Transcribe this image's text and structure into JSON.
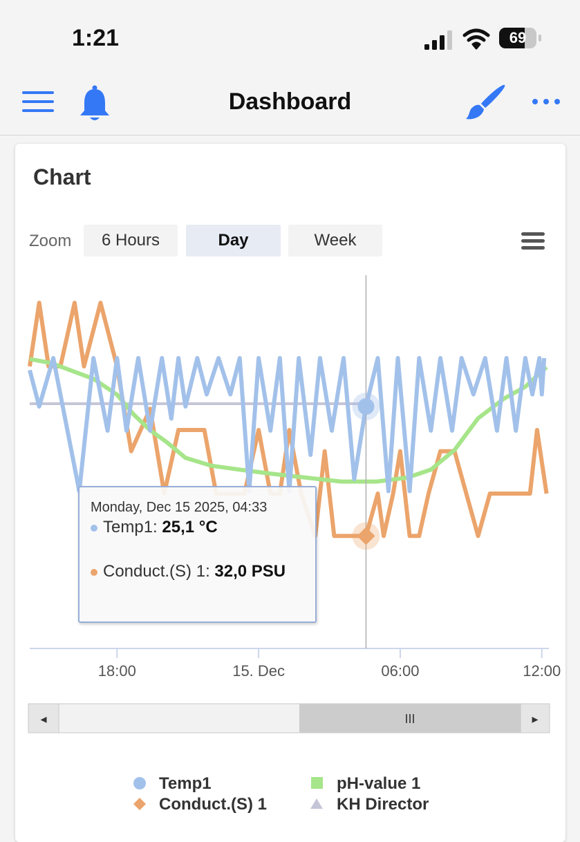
{
  "status_bar": {
    "time": "1:21",
    "battery": "69",
    "battery_level": 0.69
  },
  "nav": {
    "title": "Dashboard"
  },
  "card": {
    "title": "Chart"
  },
  "zoom": {
    "label": "Zoom",
    "buttons": [
      "6 Hours",
      "Day",
      "Week"
    ],
    "selected": "Day"
  },
  "tooltip": {
    "date": "Monday, Dec 15 2025, 04:33",
    "rows": [
      {
        "series": "Temp1: ",
        "value": "25,1 °C",
        "color": "#a2c1ea"
      },
      {
        "series": "Conduct.(S) 1: ",
        "value": "32,0 PSU",
        "color": "#eba46b"
      }
    ]
  },
  "scrollbar": {
    "left_arrow": "◂",
    "right_arrow": "▸",
    "thumb_grip": "III"
  },
  "colors": {
    "temp": "#a2c1ea",
    "conduct": "#eba46b",
    "ph": "#a6e58a",
    "kh": "#c5c5d8",
    "accent": "#3478f6"
  },
  "icons": [
    "menu-icon",
    "bell-icon",
    "brush-icon",
    "more-icon",
    "hamburger-icon"
  ],
  "chart_data": {
    "type": "line",
    "x_unit": "hour offset from 00:00 Dec 15 2025",
    "x_tick_labels": [
      "18:00",
      "15. Dec",
      "06:00",
      "12:00"
    ],
    "x_tick_values": [
      -6,
      0,
      6,
      12
    ],
    "x_range": [
      -9.7,
      12.3
    ],
    "crosshair_x": 4.55,
    "series": [
      {
        "name": "Temp1",
        "color": "#a2c1ea",
        "marker": "circle",
        "level_range": [
          24.9,
          25.5
        ],
        "points": [
          [
            -9.7,
            24.95
          ],
          [
            -9.3,
            25.1
          ],
          [
            -8.7,
            24.9
          ],
          [
            -7.6,
            25.45
          ],
          [
            -7,
            24.9
          ],
          [
            -6.4,
            25.2
          ],
          [
            -6,
            24.9
          ],
          [
            -5.6,
            25.2
          ],
          [
            -5.1,
            24.9
          ],
          [
            -4.6,
            25.2
          ],
          [
            -4.1,
            24.9
          ],
          [
            -3.7,
            25.15
          ],
          [
            -3.4,
            24.9
          ],
          [
            -3.1,
            25.1
          ],
          [
            -2.6,
            24.9
          ],
          [
            -2.2,
            25.05
          ],
          [
            -1.7,
            24.9
          ],
          [
            -1.2,
            25.05
          ],
          [
            -0.8,
            24.9
          ],
          [
            -0.4,
            25.45
          ],
          [
            0,
            24.9
          ],
          [
            0.5,
            25.2
          ],
          [
            0.9,
            24.9
          ],
          [
            1.3,
            25.45
          ],
          [
            1.7,
            24.9
          ],
          [
            2.2,
            25.3
          ],
          [
            2.6,
            24.9
          ],
          [
            3.1,
            25.2
          ],
          [
            3.6,
            24.9
          ],
          [
            4.05,
            25.4
          ],
          [
            4.55,
            25.1
          ],
          [
            5.05,
            24.9
          ],
          [
            5.5,
            25.45
          ],
          [
            5.9,
            24.9
          ],
          [
            6.4,
            25.45
          ],
          [
            6.8,
            24.9
          ],
          [
            7.3,
            25.2
          ],
          [
            7.7,
            24.9
          ],
          [
            8.2,
            25.2
          ],
          [
            8.6,
            24.9
          ],
          [
            9.1,
            25.05
          ],
          [
            9.6,
            24.9
          ],
          [
            10.1,
            25.2
          ],
          [
            10.5,
            24.9
          ],
          [
            10.9,
            25.2
          ],
          [
            11.3,
            24.9
          ],
          [
            11.6,
            25.05
          ],
          [
            11.9,
            24.9
          ],
          [
            12,
            25.05
          ],
          [
            12.1,
            24.9
          ]
        ]
      },
      {
        "name": "Conduct.(S) 1",
        "color": "#eba46b",
        "marker": "diamond",
        "level_range": [
          30.9,
          32.4
        ],
        "points": [
          [
            -9.7,
            31.2
          ],
          [
            -9.3,
            30.9
          ],
          [
            -8.9,
            31.2
          ],
          [
            -8.4,
            31.2
          ],
          [
            -7.8,
            30.9
          ],
          [
            -7.4,
            31.2
          ],
          [
            -6.7,
            30.9
          ],
          [
            -6,
            31.2
          ],
          [
            -5.4,
            31.6
          ],
          [
            -4.6,
            31.4
          ],
          [
            -4,
            31.8
          ],
          [
            -3.4,
            31.5
          ],
          [
            -2.8,
            31.5
          ],
          [
            -2.3,
            31.5
          ],
          [
            -1.8,
            31.8
          ],
          [
            -1.2,
            31.8
          ],
          [
            -0.6,
            31.8
          ],
          [
            0,
            31.5
          ],
          [
            0.5,
            31.8
          ],
          [
            0.9,
            31.8
          ],
          [
            1.3,
            31.5
          ],
          [
            1.8,
            31.8
          ],
          [
            2.4,
            32.0
          ],
          [
            2.8,
            31.6
          ],
          [
            3.2,
            32.0
          ],
          [
            3.7,
            32.0
          ],
          [
            4.05,
            32.0
          ],
          [
            4.55,
            32.0
          ],
          [
            5.05,
            31.8
          ],
          [
            5.3,
            32.0
          ],
          [
            5.7,
            31.8
          ],
          [
            6.0,
            31.6
          ],
          [
            6.4,
            32.0
          ],
          [
            6.8,
            32.0
          ],
          [
            7.2,
            31.8
          ],
          [
            7.7,
            31.6
          ],
          [
            8.3,
            31.6
          ],
          [
            8.8,
            31.8
          ],
          [
            9.3,
            32.0
          ],
          [
            9.8,
            31.8
          ],
          [
            10.3,
            31.8
          ],
          [
            11,
            31.8
          ],
          [
            11.5,
            31.8
          ],
          [
            11.8,
            31.5
          ],
          [
            12.2,
            31.8
          ]
        ]
      },
      {
        "name": "pH-value 1",
        "color": "#a6e58a",
        "marker": "square",
        "level_range": [
          8.0,
          8.35
        ],
        "points": [
          [
            -9.7,
            8.33
          ],
          [
            -8.8,
            8.32
          ],
          [
            -7.9,
            8.3
          ],
          [
            -7,
            8.28
          ],
          [
            -6,
            8.24
          ],
          [
            -5.3,
            8.19
          ],
          [
            -4.6,
            8.15
          ],
          [
            -3.9,
            8.12
          ],
          [
            -3.1,
            8.08
          ],
          [
            -2,
            8.06
          ],
          [
            -0.8,
            8.05
          ],
          [
            0.5,
            8.04
          ],
          [
            2,
            8.03
          ],
          [
            3.5,
            8.02
          ],
          [
            5,
            8.02
          ],
          [
            6.3,
            8.03
          ],
          [
            7.3,
            8.05
          ],
          [
            8.3,
            8.1
          ],
          [
            9.3,
            8.18
          ],
          [
            10.4,
            8.23
          ],
          [
            11.3,
            8.26
          ],
          [
            12.2,
            8.31
          ]
        ]
      },
      {
        "name": "KH Director",
        "color": "#c5c5d8",
        "marker": "triangle",
        "level_range": [
          7.0,
          8.0
        ],
        "points": [
          [
            -9.7,
            7.8
          ],
          [
            4.6,
            7.8
          ]
        ]
      }
    ],
    "hovered": {
      "x": 4.55,
      "temp": 25.1,
      "conduct": 32.0
    }
  }
}
